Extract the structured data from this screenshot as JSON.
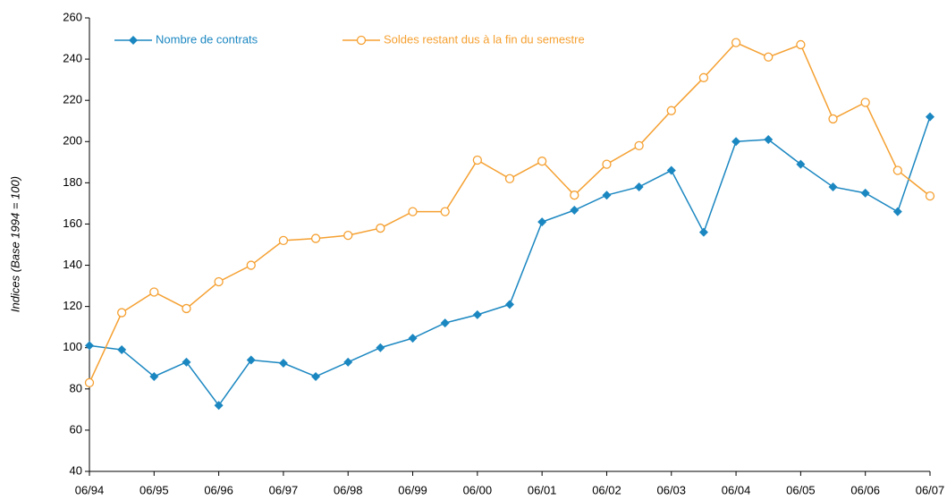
{
  "chart_data": {
    "type": "line",
    "y_label": "Indices (Base 1994 = 100)",
    "categories": [
      "06/94",
      null,
      "06/95",
      null,
      "06/96",
      null,
      "06/97",
      null,
      "06/98",
      null,
      "06/99",
      null,
      "06/00",
      null,
      "06/01",
      null,
      "06/02",
      null,
      "06/03",
      null,
      "06/04",
      null,
      "06/05",
      null,
      "06/06",
      null,
      "06/07"
    ],
    "series": [
      {
        "name": "Nombre de contrats",
        "color": "#1b87c1",
        "marker": "diamond",
        "values": [
          101,
          99,
          86,
          93,
          72,
          94,
          92.5,
          86,
          93,
          100,
          104.6,
          112,
          116,
          121,
          161,
          166.7,
          174,
          178,
          186,
          156,
          200,
          201,
          189,
          178,
          175,
          166,
          212
        ]
      },
      {
        "name": "Soldes restant dus à la fin du semestre",
        "color": "#f5a031",
        "marker": "circle",
        "values": [
          83,
          117,
          127,
          119,
          132,
          140,
          152,
          153,
          154.5,
          158,
          166,
          166,
          191,
          182,
          190.5,
          174,
          189,
          198,
          215,
          231,
          248,
          241,
          247,
          211,
          219,
          186,
          173.6
        ]
      }
    ],
    "ylim": [
      40,
      260
    ],
    "yticks": [
      40,
      60,
      80,
      100,
      120,
      140,
      160,
      180,
      200,
      220,
      240,
      260
    ],
    "grid": false,
    "legend": "top-left"
  }
}
